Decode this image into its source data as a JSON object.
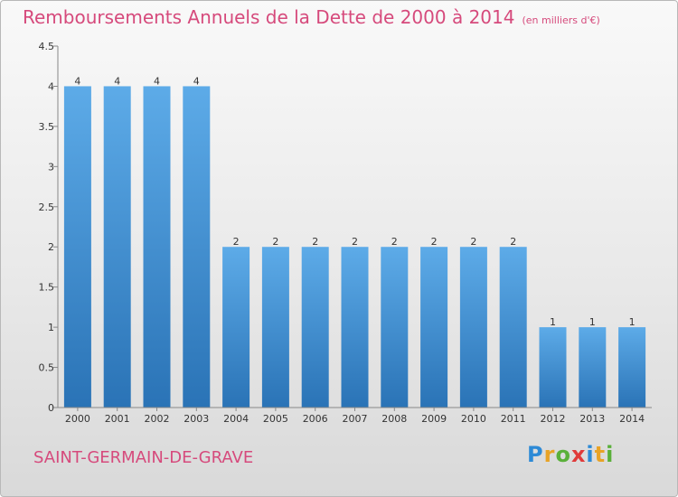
{
  "header": {
    "title": "Remboursements Annuels de la Dette de 2000 à 2014",
    "unit": "(en milliers d'€)"
  },
  "footer": {
    "commune": "SAINT-GERMAIN-DE-GRAVE",
    "logo_letters": [
      "P",
      "r",
      "o",
      "x",
      "i",
      "t",
      "i"
    ]
  },
  "colors": {
    "title": "#d64a7c",
    "bar_top": "#5dabe8",
    "bar_bottom": "#2a73b6",
    "axis": "#888888"
  },
  "chart_data": {
    "type": "bar",
    "title": "Remboursements Annuels de la Dette de 2000 à 2014",
    "xlabel": "",
    "ylabel": "",
    "categories": [
      "2000",
      "2001",
      "2002",
      "2003",
      "2004",
      "2005",
      "2006",
      "2007",
      "2008",
      "2009",
      "2010",
      "2011",
      "2012",
      "2013",
      "2014"
    ],
    "values": [
      4,
      4,
      4,
      4,
      2,
      2,
      2,
      2,
      2,
      2,
      2,
      2,
      1,
      1,
      1
    ],
    "data_labels": [
      "4",
      "4",
      "4",
      "4",
      "2",
      "2",
      "2",
      "2",
      "2",
      "2",
      "2",
      "2",
      "1",
      "1",
      "1"
    ],
    "ylim": [
      0,
      4.5
    ],
    "yticks": [
      0,
      0.5,
      1,
      1.5,
      2,
      2.5,
      3,
      3.5,
      4,
      4.5
    ],
    "ytick_labels": [
      "0",
      "0.5",
      "1",
      "1.5",
      "2",
      "2.5",
      "3",
      "3.5",
      "4",
      "4.5"
    ],
    "grid": false
  }
}
